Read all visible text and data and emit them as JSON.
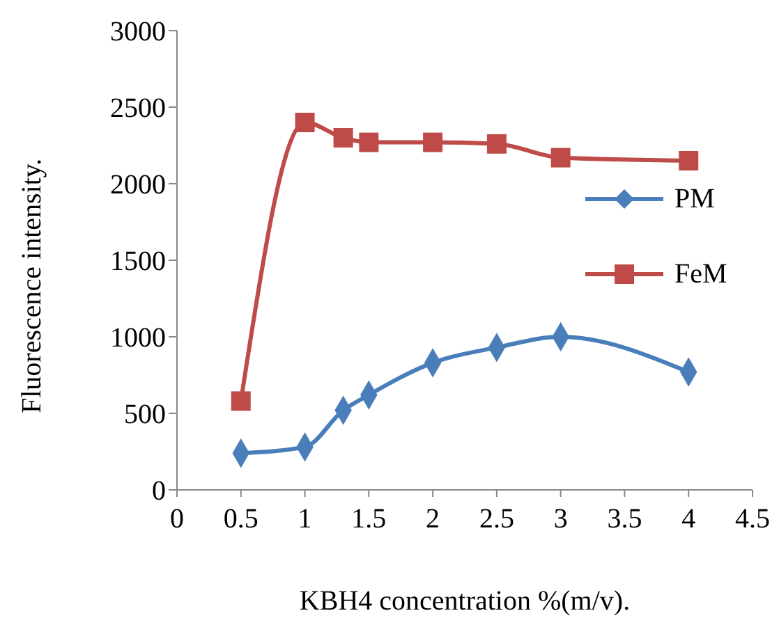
{
  "chart_data": {
    "type": "line",
    "xlabel": "KBH4 concentration %(m/v).",
    "ylabel": "Fluorescence  intensity.",
    "x": [
      0.5,
      1,
      1.3,
      1.5,
      2,
      2.5,
      3,
      4
    ],
    "series": [
      {
        "name": "PM",
        "color": "#4a7ebb",
        "marker": "diamond",
        "values": [
          240,
          280,
          520,
          620,
          830,
          930,
          1000,
          770
        ]
      },
      {
        "name": "FeM",
        "color": "#be4b48",
        "marker": "square",
        "values": [
          580,
          2400,
          2300,
          2270,
          2270,
          2260,
          2170,
          2150
        ]
      }
    ],
    "xlim": [
      0,
      4.5
    ],
    "xticks": [
      0,
      0.5,
      1,
      1.5,
      2,
      2.5,
      3,
      3.5,
      4,
      4.5
    ],
    "ylim": [
      0,
      3000
    ],
    "yticks": [
      0,
      500,
      1000,
      1500,
      2000,
      2500,
      3000
    ],
    "grid": false,
    "legend": "right"
  }
}
